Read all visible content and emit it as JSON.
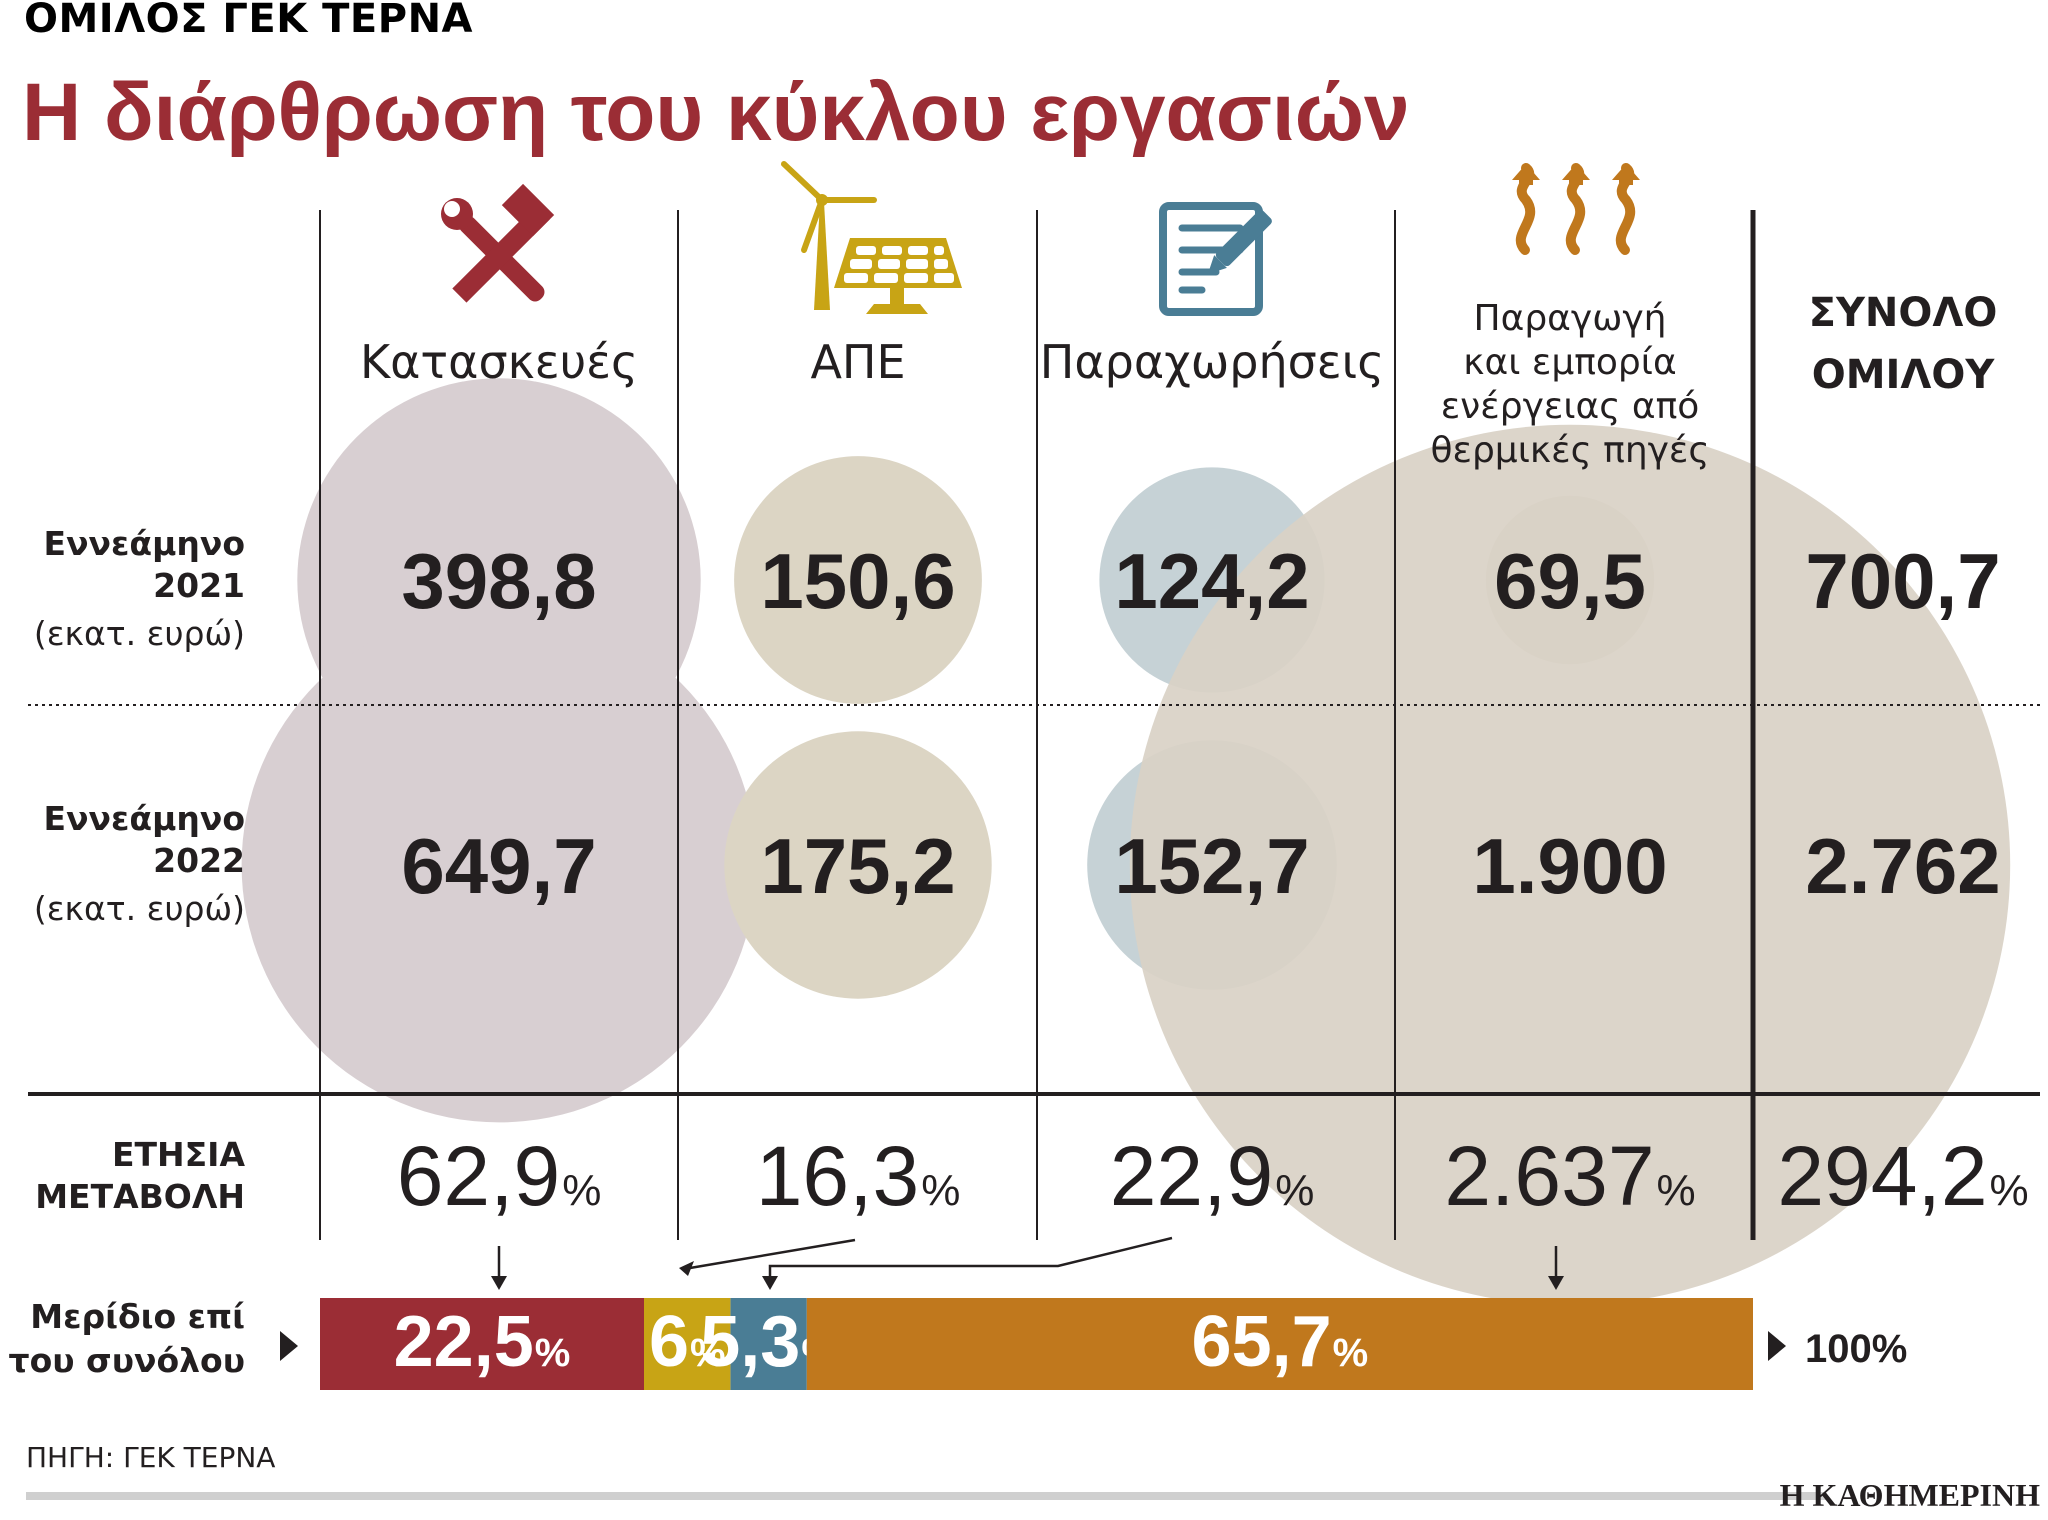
{
  "header": {
    "kicker": "ΟΜΙΛΟΣ ΓΕΚ ΤΕΡΝΑ",
    "title": "Η διάρθρωση του κύκλου εργασιών"
  },
  "colors": {
    "title": "#9b2d35",
    "construction": "#9b2d35",
    "renewables": "#c8a415",
    "concessions": "#4a7d95",
    "thermal": "#c0781d",
    "bubble_construction": "#d8cfd2",
    "bubble_renewables": "#dcd5c4",
    "bubble_concessions": "#c6d2d6",
    "bubble_thermal": "#d9d1c6"
  },
  "columns": [
    {
      "label_lines": [
        "Κατασκευές"
      ],
      "icon": "hammer-wrench-icon"
    },
    {
      "label_lines": [
        "ΑΠΕ"
      ],
      "icon": "wind-solar-icon"
    },
    {
      "label_lines": [
        "Παραχωρήσεις"
      ],
      "icon": "contract-pen-icon"
    },
    {
      "label_lines": [
        "Παραγωγή",
        "και εμπορία",
        "ενέργειας από",
        "θερμικές πηγές"
      ],
      "icon": "heat-arrows-icon"
    }
  ],
  "total_column": {
    "label_lines": [
      "ΣΥΝΟΛΟ",
      "ΟΜΙΛΟΥ"
    ]
  },
  "row_labels": [
    {
      "line1": "Εννεάμηνο",
      "line2": "2021",
      "unit": "(εκατ. ευρώ)"
    },
    {
      "line1": "Εννεάμηνο",
      "line2": "2022",
      "unit": "(εκατ. ευρώ)"
    }
  ],
  "change_label": [
    "ΕΤΗΣΙΑ",
    "ΜΕΤΑΒΟΛΗ"
  ],
  "share_label": [
    "Μερίδιο επί",
    "του συνόλου"
  ],
  "total_share_label": "100%",
  "source": "ΠΗΓΗ: ΓΕΚ ΤΕΡΝΑ",
  "brand": "Η ΚΑΘΗΜΕΡΙΝΗ",
  "chart_data": {
    "type": "table",
    "categories": [
      "Κατασκευές",
      "ΑΠΕ",
      "Παραχωρήσεις",
      "Παραγωγή και εμπορία ενέργειας από θερμικές πηγές"
    ],
    "series": [
      {
        "name": "Εννεάμηνο 2021",
        "values": [
          398.8,
          150.6,
          124.2,
          69.5
        ],
        "labels": [
          "398,8",
          "150,6",
          "124,2",
          "69,5"
        ]
      },
      {
        "name": "Εννεάμηνο 2022",
        "values": [
          649.7,
          175.2,
          152.7,
          1900
        ],
        "labels": [
          "649,7",
          "175,2",
          "152,7",
          "1.900"
        ]
      }
    ],
    "totals": {
      "values": [
        700.7,
        2762
      ],
      "labels": [
        "700,7",
        "2.762"
      ]
    },
    "unit": "εκατ. ευρώ",
    "annual_change": {
      "values": [
        62.9,
        16.3,
        22.9,
        2637,
        294.2
      ],
      "labels": [
        "62,9",
        "16,3",
        "22,9",
        "2.637",
        "294,2"
      ],
      "suffix": "%"
    },
    "share_of_total": {
      "values": [
        22.5,
        6,
        5.3,
        65.7
      ],
      "labels": [
        "22,5",
        "6",
        "5,3",
        "65,7"
      ],
      "suffix": "%"
    }
  }
}
